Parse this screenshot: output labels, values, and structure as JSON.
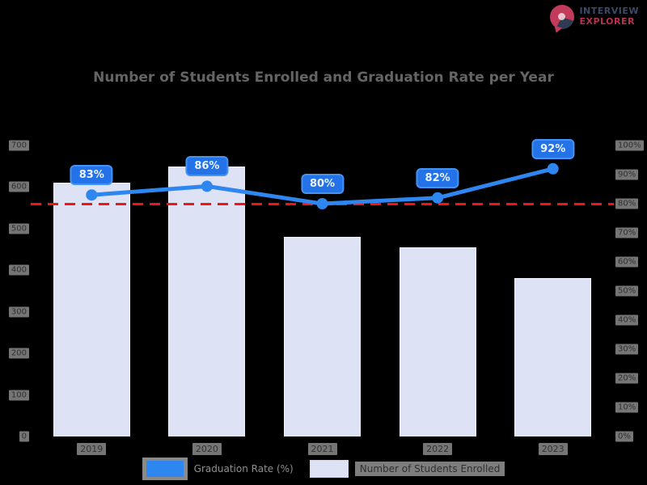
{
  "brand": {
    "line1": "INTERVIEW",
    "line2": "EXPLORER",
    "icon": "pin-pie-icon",
    "color_primary": "#3a4a68",
    "color_accent": "#c23b5a"
  },
  "title": "Number of Students Enrolled and Graduation Rate per Year",
  "chart_data": {
    "type": "combo",
    "title": "Number of Students Enrolled and Graduation Rate per Year",
    "categories": [
      "2019",
      "2020",
      "2021",
      "2022",
      "2023"
    ],
    "series": [
      {
        "name": "Graduation Rate (%)",
        "type": "line",
        "axis": "right",
        "color": "#2e86f0",
        "values": [
          83,
          86,
          80,
          82,
          92
        ],
        "point_labels": [
          "83%",
          "86%",
          "80%",
          "82%",
          "92%"
        ]
      },
      {
        "name": "Number of Students Enrolled",
        "type": "bar",
        "axis": "left",
        "color": "#dde2f4",
        "values": [
          610,
          650,
          480,
          455,
          382
        ]
      }
    ],
    "left_axis": {
      "min": 0,
      "max": 700,
      "ticks": [
        "700",
        "600",
        "500",
        "400",
        "300",
        "200",
        "100",
        "0"
      ]
    },
    "right_axis": {
      "min": 0,
      "max": 100,
      "ticks": [
        "100%",
        "90%",
        "80%",
        "70%",
        "60%",
        "50%",
        "40%",
        "30%",
        "20%",
        "10%",
        "0%"
      ]
    },
    "target_line": {
      "value": 80,
      "color": "#f21515",
      "style": "dashed"
    },
    "grid": false,
    "legend_position": "bottom",
    "background": "#000000"
  }
}
